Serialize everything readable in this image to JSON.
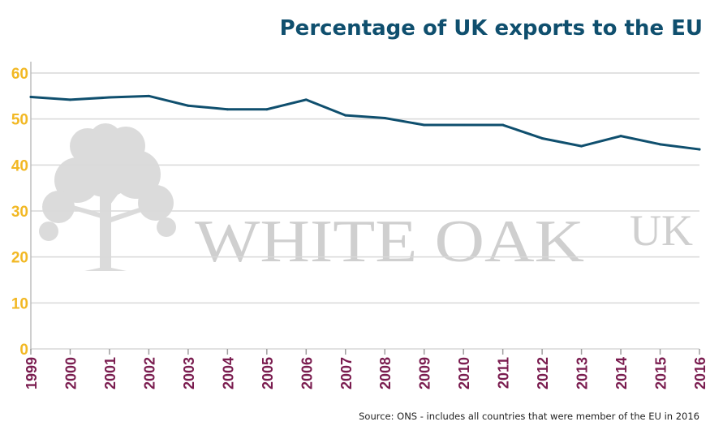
{
  "chart_data": {
    "type": "line",
    "title": "Percentage of UK exports to the EU",
    "xlabel": "",
    "ylabel": "",
    "categories": [
      "1999",
      "2000",
      "2001",
      "2002",
      "2003",
      "2004",
      "2005",
      "2006",
      "2007",
      "2008",
      "2009",
      "2010",
      "2011",
      "2012",
      "2013",
      "2014",
      "2015",
      "2016"
    ],
    "series": [
      {
        "values": [
          54.8,
          54.2,
          54.7,
          55.0,
          52.9,
          52.1,
          52.1,
          54.2,
          50.8,
          50.2,
          48.7,
          48.7,
          48.7,
          45.8,
          44.1,
          46.3,
          44.5,
          43.4
        ]
      }
    ],
    "ylim": [
      0,
      60
    ],
    "yticks": [
      "0",
      "10",
      "20",
      "30",
      "40",
      "50",
      "60"
    ],
    "grid": true,
    "legend": "none",
    "colors": {
      "line": "#0f4f6e",
      "title": "#0f4f6e",
      "ytick": "#f2b824",
      "xtick": "#7a1c4f"
    }
  },
  "watermark": {
    "brand": "WHITE OAK",
    "suffix": "UK",
    "icon": "oak-tree-icon"
  },
  "source": "Source: ONS - includes all countries that were member of the EU in 2016"
}
